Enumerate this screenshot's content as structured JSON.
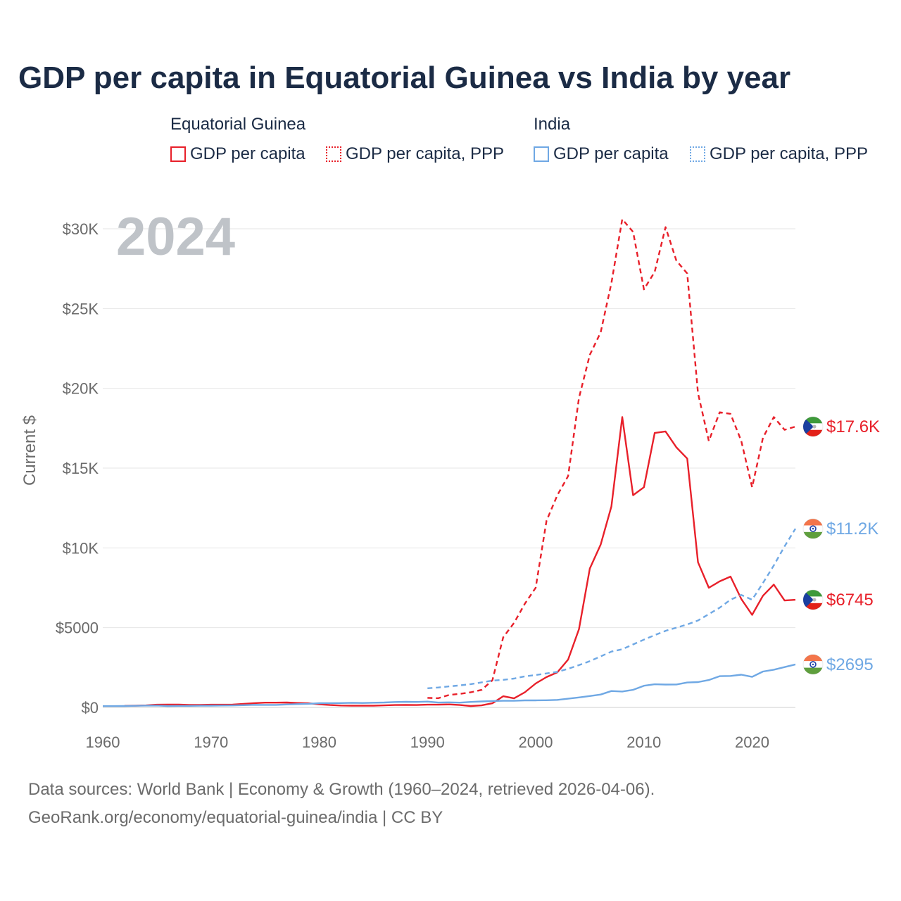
{
  "header": {
    "title": "GDP per capita in Equatorial Guinea vs India by year"
  },
  "legend": {
    "groups": [
      {
        "name": "Equatorial Guinea",
        "items": [
          "GDP per capita",
          "GDP per capita, PPP"
        ]
      },
      {
        "name": "India",
        "items": [
          "GDP per capita",
          "GDP per capita, PPP"
        ]
      }
    ]
  },
  "colors": {
    "equatorial_guinea": "#e8202a",
    "india": "#6fa8e4",
    "title": "#1b2b45",
    "axis_text": "#6b6b6b",
    "grid": "#e6e6e6",
    "year_watermark": "#bfc3c8"
  },
  "footer": {
    "source_line1": "Data sources: World Bank | Economy & Growth (1960–2024, retrieved 2026-04-06).",
    "source_line2": "GeoRank.org/economy/equatorial-guinea/india | CC BY"
  },
  "chart_data": {
    "type": "line",
    "year_label": "2024",
    "ylabel": "Current $",
    "xlim": [
      1960,
      2024
    ],
    "ylim": [
      0,
      30000
    ],
    "x_ticks": [
      1960,
      1970,
      1980,
      1990,
      2000,
      2010,
      2020
    ],
    "x_tick_labels": [
      "1960",
      "1970",
      "1980",
      "1990",
      "2000",
      "2010",
      "2020"
    ],
    "y_ticks": [
      0,
      5000,
      10000,
      15000,
      20000,
      25000,
      30000
    ],
    "y_tick_labels": [
      "$0",
      "$5000",
      "$10K",
      "$15K",
      "$20K",
      "$25K",
      "$30K"
    ],
    "grid": true,
    "series": [
      {
        "name": "Equatorial Guinea — GDP per capita, PPP",
        "country": "Equatorial Guinea",
        "style": "dashed",
        "end_label": "$17.6K",
        "flag": "equatorial-guinea-flag-icon",
        "points": [
          [
            1990,
            600
          ],
          [
            1991,
            580
          ],
          [
            1992,
            780
          ],
          [
            1993,
            850
          ],
          [
            1994,
            950
          ],
          [
            1995,
            1100
          ],
          [
            1996,
            1700
          ],
          [
            1997,
            4400
          ],
          [
            1998,
            5300
          ],
          [
            1999,
            6500
          ],
          [
            2000,
            7500
          ],
          [
            2001,
            11700
          ],
          [
            2002,
            13300
          ],
          [
            2003,
            14500
          ],
          [
            2004,
            19400
          ],
          [
            2005,
            22100
          ],
          [
            2006,
            23500
          ],
          [
            2007,
            26600
          ],
          [
            2008,
            30600
          ],
          [
            2009,
            29800
          ],
          [
            2010,
            26200
          ],
          [
            2011,
            27300
          ],
          [
            2012,
            30100
          ],
          [
            2013,
            28000
          ],
          [
            2014,
            27200
          ],
          [
            2015,
            19700
          ],
          [
            2016,
            16700
          ],
          [
            2017,
            18500
          ],
          [
            2018,
            18400
          ],
          [
            2019,
            16700
          ],
          [
            2020,
            13800
          ],
          [
            2021,
            16900
          ],
          [
            2022,
            18200
          ],
          [
            2023,
            17400
          ],
          [
            2024,
            17600
          ]
        ]
      },
      {
        "name": "Equatorial Guinea — GDP per capita",
        "country": "Equatorial Guinea",
        "style": "solid",
        "end_label": "$6745",
        "flag": "equatorial-guinea-flag-icon",
        "points": [
          [
            1962,
            100
          ],
          [
            1963,
            110
          ],
          [
            1964,
            130
          ],
          [
            1965,
            170
          ],
          [
            1966,
            180
          ],
          [
            1967,
            180
          ],
          [
            1968,
            160
          ],
          [
            1969,
            160
          ],
          [
            1970,
            170
          ],
          [
            1971,
            170
          ],
          [
            1972,
            180
          ],
          [
            1973,
            220
          ],
          [
            1974,
            270
          ],
          [
            1975,
            300
          ],
          [
            1976,
            300
          ],
          [
            1977,
            310
          ],
          [
            1978,
            280
          ],
          [
            1979,
            260
          ],
          [
            1980,
            200
          ],
          [
            1981,
            150
          ],
          [
            1982,
            120
          ],
          [
            1983,
            110
          ],
          [
            1984,
            110
          ],
          [
            1985,
            110
          ],
          [
            1986,
            130
          ],
          [
            1987,
            150
          ],
          [
            1988,
            160
          ],
          [
            1989,
            150
          ],
          [
            1990,
            170
          ],
          [
            1991,
            170
          ],
          [
            1992,
            190
          ],
          [
            1993,
            150
          ],
          [
            1994,
            90
          ],
          [
            1995,
            130
          ],
          [
            1996,
            260
          ],
          [
            1997,
            700
          ],
          [
            1998,
            570
          ],
          [
            1999,
            950
          ],
          [
            2000,
            1500
          ],
          [
            2001,
            1900
          ],
          [
            2002,
            2200
          ],
          [
            2003,
            3000
          ],
          [
            2004,
            4900
          ],
          [
            2005,
            8700
          ],
          [
            2006,
            10200
          ],
          [
            2007,
            12600
          ],
          [
            2008,
            18200
          ],
          [
            2009,
            13300
          ],
          [
            2010,
            13800
          ],
          [
            2011,
            17200
          ],
          [
            2012,
            17300
          ],
          [
            2013,
            16300
          ],
          [
            2014,
            15600
          ],
          [
            2015,
            9100
          ],
          [
            2016,
            7500
          ],
          [
            2017,
            7900
          ],
          [
            2018,
            8200
          ],
          [
            2019,
            6800
          ],
          [
            2020,
            5800
          ],
          [
            2021,
            7000
          ],
          [
            2022,
            7700
          ],
          [
            2023,
            6700
          ],
          [
            2024,
            6745
          ]
        ]
      },
      {
        "name": "India — GDP per capita, PPP",
        "country": "India",
        "style": "dashed",
        "end_label": "$11.2K",
        "flag": "india-flag-icon",
        "points": [
          [
            1990,
            1200
          ],
          [
            1991,
            1250
          ],
          [
            1992,
            1320
          ],
          [
            1993,
            1380
          ],
          [
            1994,
            1460
          ],
          [
            1995,
            1570
          ],
          [
            1996,
            1680
          ],
          [
            1997,
            1730
          ],
          [
            1998,
            1810
          ],
          [
            1999,
            1950
          ],
          [
            2000,
            2030
          ],
          [
            2001,
            2130
          ],
          [
            2002,
            2230
          ],
          [
            2003,
            2420
          ],
          [
            2004,
            2650
          ],
          [
            2005,
            2900
          ],
          [
            2006,
            3200
          ],
          [
            2007,
            3500
          ],
          [
            2008,
            3650
          ],
          [
            2009,
            3950
          ],
          [
            2010,
            4250
          ],
          [
            2011,
            4530
          ],
          [
            2012,
            4800
          ],
          [
            2013,
            5000
          ],
          [
            2014,
            5200
          ],
          [
            2015,
            5450
          ],
          [
            2016,
            5850
          ],
          [
            2017,
            6250
          ],
          [
            2018,
            6750
          ],
          [
            2019,
            7050
          ],
          [
            2020,
            6750
          ],
          [
            2021,
            7800
          ],
          [
            2022,
            8900
          ],
          [
            2023,
            10100
          ],
          [
            2024,
            11200
          ]
        ]
      },
      {
        "name": "India — GDP per capita",
        "country": "India",
        "style": "solid",
        "end_label": "$2695",
        "flag": "india-flag-icon",
        "points": [
          [
            1960,
            82
          ],
          [
            1961,
            85
          ],
          [
            1962,
            90
          ],
          [
            1963,
            101
          ],
          [
            1964,
            116
          ],
          [
            1965,
            119
          ],
          [
            1966,
            90
          ],
          [
            1967,
            96
          ],
          [
            1968,
            99
          ],
          [
            1969,
            107
          ],
          [
            1970,
            112
          ],
          [
            1971,
            118
          ],
          [
            1972,
            122
          ],
          [
            1973,
            143
          ],
          [
            1974,
            163
          ],
          [
            1975,
            158
          ],
          [
            1976,
            161
          ],
          [
            1977,
            186
          ],
          [
            1978,
            206
          ],
          [
            1979,
            224
          ],
          [
            1980,
            266
          ],
          [
            1981,
            270
          ],
          [
            1982,
            274
          ],
          [
            1983,
            291
          ],
          [
            1984,
            277
          ],
          [
            1985,
            296
          ],
          [
            1986,
            310
          ],
          [
            1987,
            340
          ],
          [
            1988,
            354
          ],
          [
            1989,
            346
          ],
          [
            1990,
            368
          ],
          [
            1991,
            303
          ],
          [
            1992,
            317
          ],
          [
            1993,
            301
          ],
          [
            1994,
            346
          ],
          [
            1995,
            374
          ],
          [
            1996,
            400
          ],
          [
            1997,
            415
          ],
          [
            1998,
            413
          ],
          [
            1999,
            441
          ],
          [
            2000,
            443
          ],
          [
            2001,
            452
          ],
          [
            2002,
            471
          ],
          [
            2003,
            547
          ],
          [
            2004,
            628
          ],
          [
            2005,
            714
          ],
          [
            2006,
            807
          ],
          [
            2007,
            1028
          ],
          [
            2008,
            999
          ],
          [
            2009,
            1102
          ],
          [
            2010,
            1358
          ],
          [
            2011,
            1450
          ],
          [
            2012,
            1434
          ],
          [
            2013,
            1438
          ],
          [
            2014,
            1560
          ],
          [
            2015,
            1590
          ],
          [
            2016,
            1714
          ],
          [
            2017,
            1958
          ],
          [
            2018,
            1974
          ],
          [
            2019,
            2050
          ],
          [
            2020,
            1914
          ],
          [
            2021,
            2250
          ],
          [
            2022,
            2366
          ],
          [
            2023,
            2530
          ],
          [
            2024,
            2695
          ]
        ]
      }
    ]
  }
}
